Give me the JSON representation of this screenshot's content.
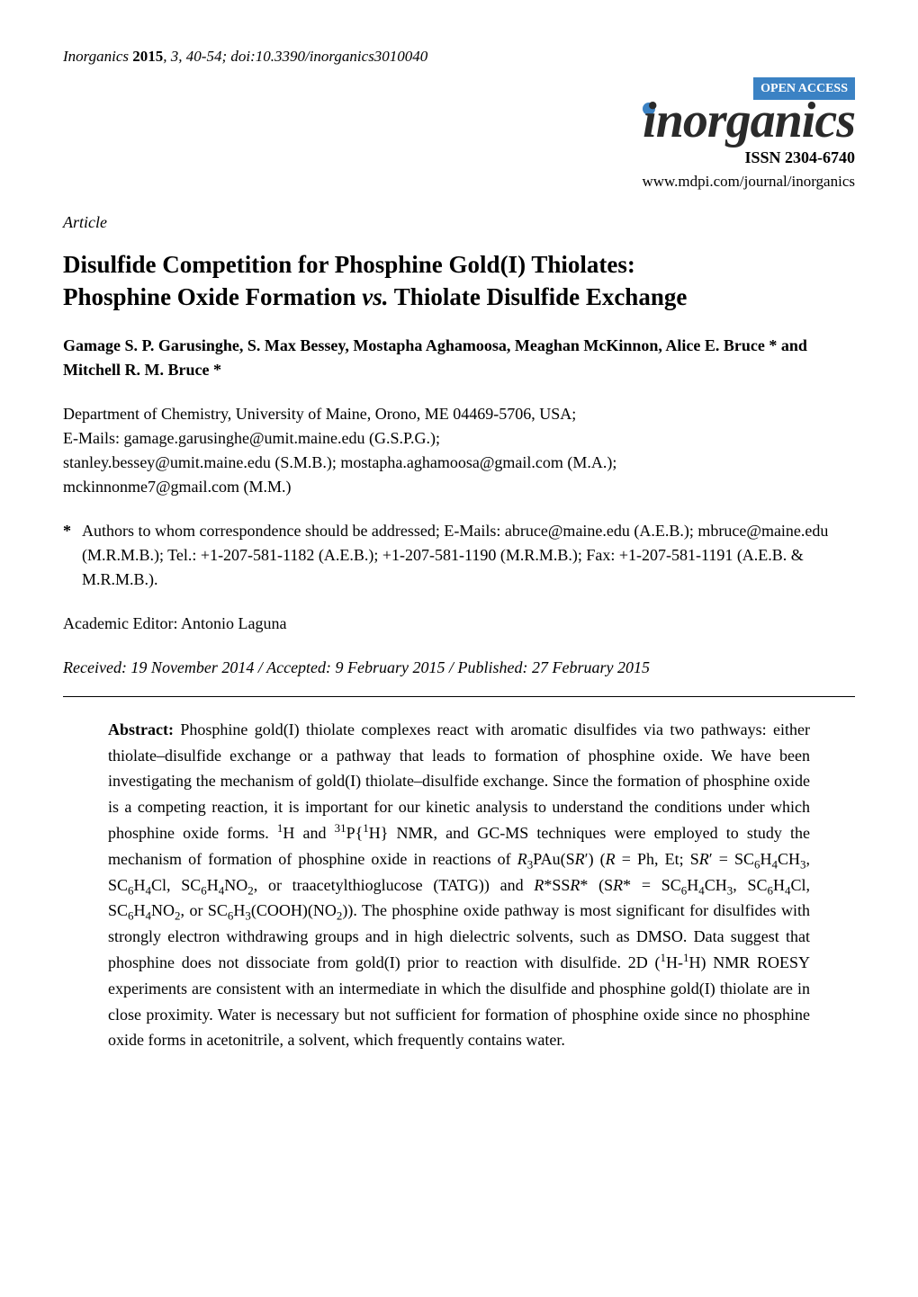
{
  "header": {
    "journal_name_italic": "Inorganics",
    "year_bold": "2015",
    "vol_issue_pages_doi": ", 3, 40-54; doi:10.3390/inorganics3010040",
    "open_access_label": "OPEN ACCESS",
    "logo_text": "inorganics",
    "issn": "ISSN 2304-6740",
    "url": "www.mdpi.com/journal/inorganics",
    "article_label": "Article"
  },
  "title_line1": "Disulfide Competition for Phosphine Gold(I) Thiolates:",
  "title_line2_a": "Phosphine Oxide Formation ",
  "title_line2_vs": "vs.",
  "title_line2_b": " Thiolate Disulfide Exchange",
  "authors": "Gamage S. P. Garusinghe, S. Max Bessey, Mostapha Aghamoosa, Meaghan McKinnon, Alice E. Bruce * and Mitchell R. M. Bruce *",
  "affiliation": {
    "line1": "Department of Chemistry, University of Maine, Orono, ME 04469-5706, USA;",
    "line2": "E-Mails: gamage.garusinghe@umit.maine.edu (G.S.P.G.);",
    "line3": "stanley.bessey@umit.maine.edu (S.M.B.); mostapha.aghamoosa@gmail.com (M.A.);",
    "line4": "mckinnonme7@gmail.com (M.M.)"
  },
  "correspondence": {
    "asterisk": "*",
    "text": "Authors to whom correspondence should be addressed; E-Mails: abruce@maine.edu (A.E.B.); mbruce@maine.edu (M.R.M.B.); Tel.: +1-207-581-1182 (A.E.B.); +1-207-581-1190 (M.R.M.B.); Fax: +1-207-581-1191 (A.E.B. & M.R.M.B.)."
  },
  "editor": "Academic Editor: Antonio Laguna",
  "dates": "Received: 19 November 2014 / Accepted: 9 February 2015 / Published: 27 February 2015",
  "abstract": {
    "label": "Abstract:",
    "p1": " Phosphine gold(I) thiolate complexes react with aromatic disulfides via two pathways: either thiolate–disulfide exchange or a pathway that leads to formation of phosphine oxide. We have been investigating the mechanism of gold(I) thiolate–disulfide exchange. Since the formation of phosphine oxide is a competing reaction, it is important for our kinetic analysis to understand the conditions under which phosphine oxide forms. ",
    "nmr1_sup": "1",
    "nmr1_txt": "H and ",
    "nmr2_sup1": "31",
    "nmr2_txt1": "P{",
    "nmr2_sup2": "1",
    "nmr2_txt2": "H} NMR, and GC-MS techniques were employed to study the mechanism of formation of phosphine oxide in reactions of ",
    "r_italic1": "R",
    "f_sub1": "3",
    "f_txt1": "PAu(S",
    "r_italic2": "R",
    "f_txt2": "′) (",
    "r_italic3": "R",
    "f_txt3": " = Ph, Et; S",
    "r_italic4": "R",
    "f_txt4": "′ = SC",
    "f_sub2": "6",
    "f_txt5": "H",
    "f_sub3": "4",
    "f_txt6": "CH",
    "f_sub4": "3",
    "f_txt7": ", SC",
    "f_sub5": "6",
    "f_txt8": "H",
    "f_sub6": "4",
    "f_txt9": "Cl, SC",
    "f_sub7": "6",
    "f_txt10": "H",
    "f_sub8": "4",
    "f_txt11": "NO",
    "f_sub9": "2",
    "f_txt12": ", or traacetylthioglucose (TATG)) and ",
    "r_italic5": "R",
    "f_txt13": "*SS",
    "r_italic6": "R",
    "f_txt14": "* (S",
    "r_italic7": "R",
    "f_txt15": "* = SC",
    "f_sub10": "6",
    "f_txt16": "H",
    "f_sub11": "4",
    "f_txt17": "CH",
    "f_sub12": "3",
    "f_txt18": ", SC",
    "f_sub13": "6",
    "f_txt19": "H",
    "f_sub14": "4",
    "f_txt20": "Cl, SC",
    "f_sub15": "6",
    "f_txt21": "H",
    "f_sub16": "4",
    "f_txt22": "NO",
    "f_sub17": "2",
    "f_txt23": ", or SC",
    "f_sub18": "6",
    "f_txt24": "H",
    "f_sub19": "3",
    "f_txt25": "(COOH)(NO",
    "f_sub20": "2",
    "f_txt26": ")). The phosphine oxide pathway is most significant for disulfides with strongly electron withdrawing groups and in high dielectric solvents, such as DMSO. Data suggest that phosphine does not dissociate from gold(I) prior to reaction with disulfide. 2D (",
    "roesy_sup1": "1",
    "roesy_txt1": "H-",
    "roesy_sup2": "1",
    "roesy_txt2": "H) NMR ROESY experiments are consistent with an intermediate in which the disulfide and phosphine gold(I) thiolate are in close proximity. Water is necessary but not sufficient for formation of phosphine oxide since no phosphine oxide forms in acetonitrile, a solvent, which frequently contains water."
  },
  "colors": {
    "open_access_bg": "#3b82c4",
    "text": "#000000",
    "background": "#ffffff"
  }
}
